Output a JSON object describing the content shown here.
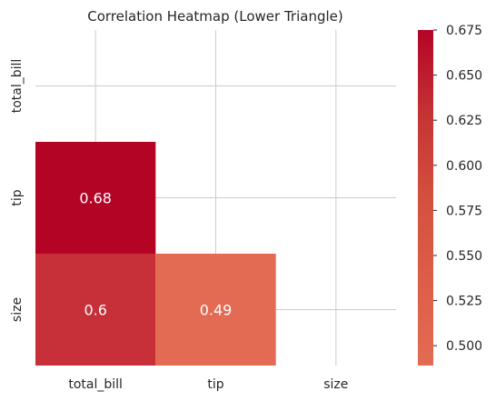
{
  "chart_data": {
    "type": "heatmap",
    "title": "Correlation Heatmap (Lower Triangle)",
    "xlabel": "",
    "ylabel": "",
    "rows": [
      "total_bill",
      "tip",
      "size"
    ],
    "columns": [
      "total_bill",
      "tip",
      "size"
    ],
    "cells": [
      {
        "row": "tip",
        "col": "total_bill",
        "value": 0.675,
        "label": "0.68"
      },
      {
        "row": "size",
        "col": "total_bill",
        "value": 0.598,
        "label": "0.6"
      },
      {
        "row": "size",
        "col": "tip",
        "value": 0.489,
        "label": "0.49"
      }
    ],
    "masked": "upper triangle and diagonal",
    "colormap": "coolwarm",
    "colorbar": {
      "range": [
        0.489,
        0.675
      ],
      "ticks": [
        "0.500",
        "0.525",
        "0.550",
        "0.575",
        "0.600",
        "0.625",
        "0.650",
        "0.675"
      ],
      "colors": {
        "min": "#e36b53",
        "max": "#b40426"
      }
    },
    "grid": true,
    "colors": {
      "grid": "#cccccc",
      "annotation_text": "#ffffff",
      "label_text": "#262626"
    }
  }
}
